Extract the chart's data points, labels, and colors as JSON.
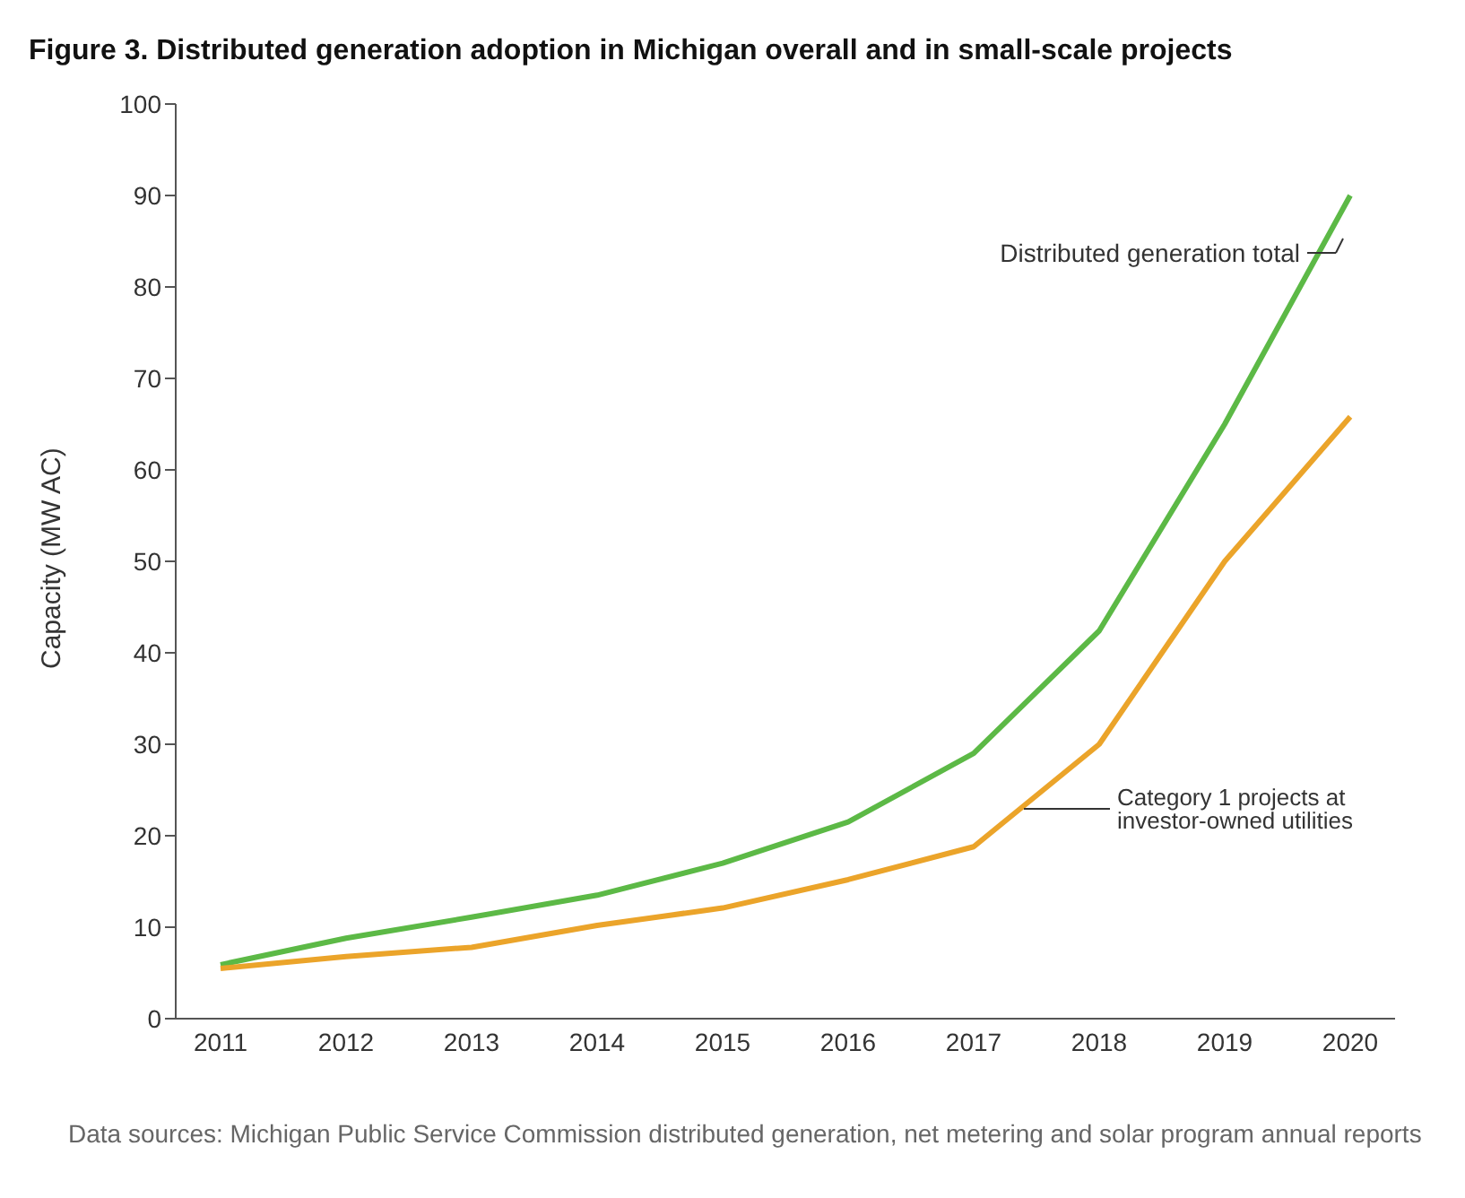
{
  "chart_data": {
    "type": "line",
    "title": "Figure 3. Distributed generation adoption in Michigan overall and in small-scale projects",
    "ylabel": "Capacity (MW AC)",
    "categories": [
      "2011",
      "2012",
      "2013",
      "2014",
      "2015",
      "2016",
      "2017",
      "2018",
      "2019",
      "2020"
    ],
    "series": [
      {
        "name": "Distributed generation total",
        "color": "#5cb946",
        "values": [
          5.9,
          8.8,
          11.1,
          13.5,
          17,
          21.5,
          29,
          42.4,
          65,
          90
        ]
      },
      {
        "name": "Category 1 projects at investor-owned utilities",
        "color": "#eba42a",
        "values": [
          5.5,
          6.8,
          7.8,
          10.2,
          12.1,
          15.2,
          18.8,
          30,
          50,
          65.8
        ]
      }
    ],
    "ylim": [
      0,
      100
    ],
    "yticks": [
      0,
      10,
      20,
      30,
      40,
      50,
      60,
      70,
      80,
      90,
      100
    ],
    "grid": false,
    "legend": false,
    "marker": "none",
    "line_style": "solid",
    "annotations": [
      "Data sources: Michigan Public Service Commission distributed generation, net metering and solar program annual reports"
    ]
  }
}
